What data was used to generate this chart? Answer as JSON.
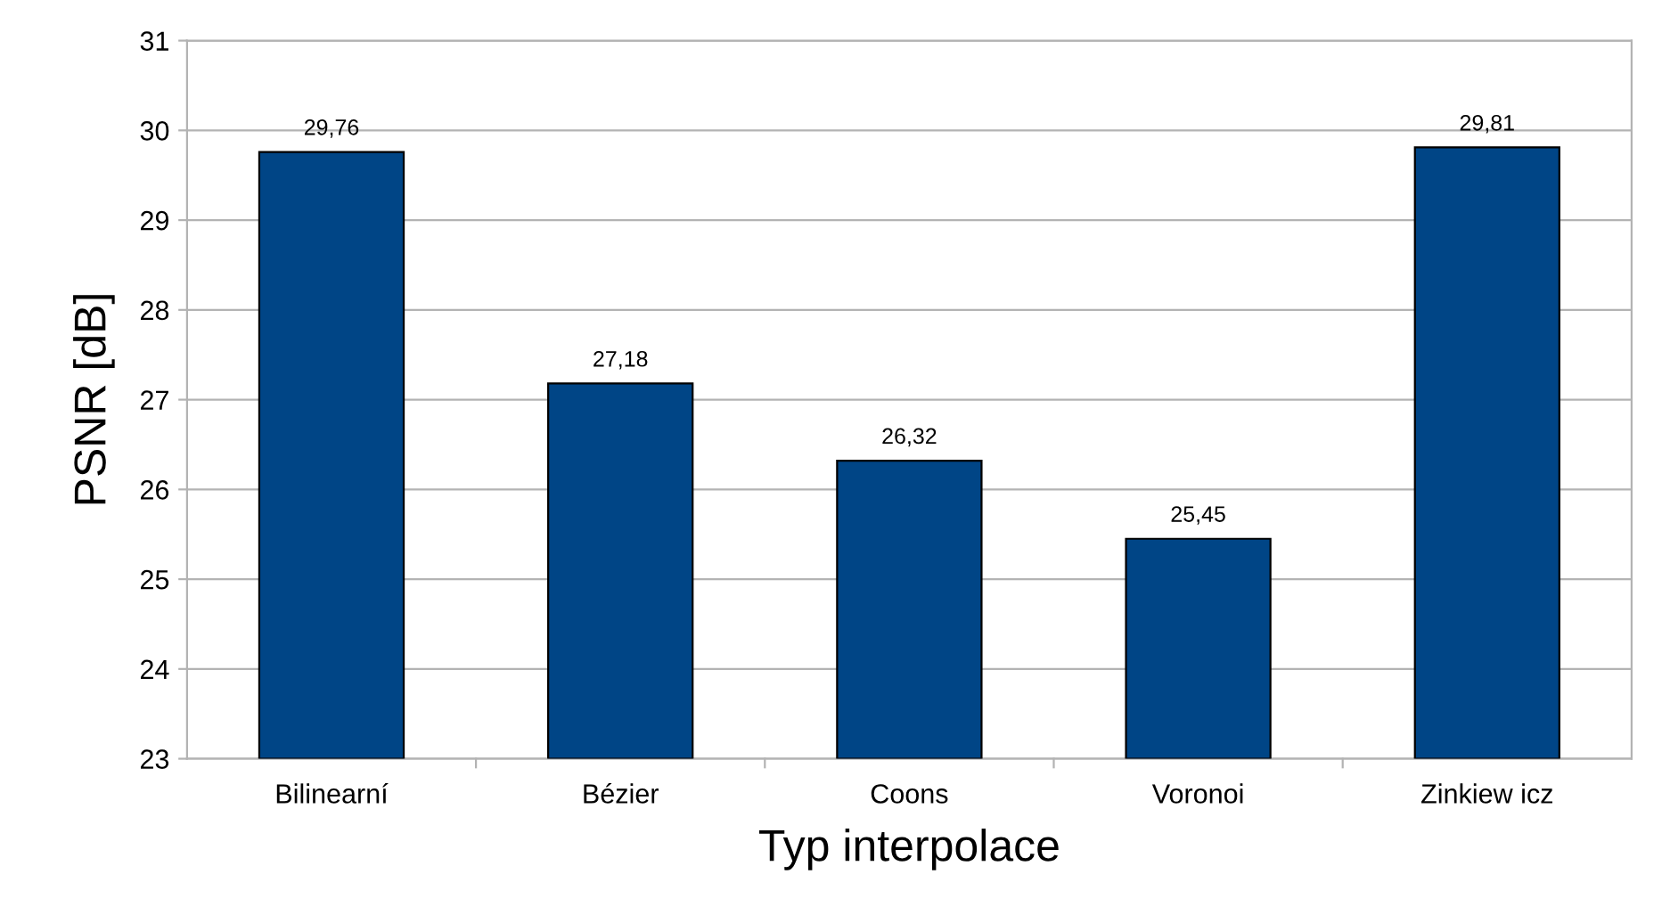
{
  "chart_data": {
    "type": "bar",
    "xlabel": "Typ interpolace",
    "ylabel": "PSNR [dB]",
    "categories": [
      "Bilinearní",
      "Bézier",
      "Coons",
      "Voronoi",
      "Zinkiew icz"
    ],
    "values": [
      29.76,
      27.18,
      26.32,
      25.45,
      29.81
    ],
    "value_labels": [
      "29,76",
      "27,18",
      "26,32",
      "25,45",
      "29,81"
    ],
    "color": "#004586",
    "ylim": [
      23,
      31
    ],
    "yticks": [
      23,
      24,
      25,
      26,
      27,
      28,
      29,
      30,
      31
    ],
    "grid": "y",
    "legend": false
  }
}
